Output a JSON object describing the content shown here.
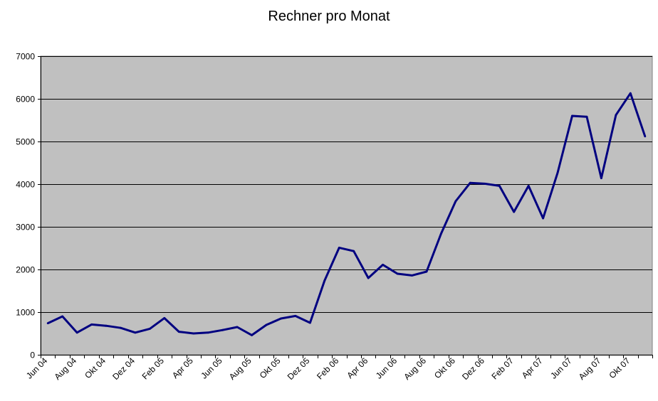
{
  "chart_data": {
    "type": "line",
    "title": "Rechner pro Monat",
    "xlabel": "",
    "ylabel": "",
    "ylim": [
      0,
      7000
    ],
    "yticks": [
      0,
      1000,
      2000,
      3000,
      4000,
      5000,
      6000,
      7000
    ],
    "grid": true,
    "legend": "none",
    "colors": {
      "plot_background": "#c0c0c0",
      "line": "#000080",
      "gridline": "#000000"
    },
    "x": [
      "Jun 04",
      "Jul 04",
      "Aug 04",
      "Sep 04",
      "Okt 04",
      "Nov 04",
      "Dez 04",
      "Jan 05",
      "Feb 05",
      "Mär 05",
      "Apr 05",
      "Mai 05",
      "Jun 05",
      "Jul 05",
      "Aug 05",
      "Sep 05",
      "Okt 05",
      "Nov 05",
      "Dez 05",
      "Jan 06",
      "Feb 06",
      "Mär 06",
      "Apr 06",
      "Mai 06",
      "Jun 06",
      "Jul 06",
      "Aug 06",
      "Sep 06",
      "Okt 06",
      "Nov 06",
      "Dez 06",
      "Jan 07",
      "Feb 07",
      "Mär 07",
      "Apr 07",
      "Mai 07",
      "Jun 07",
      "Jul 07",
      "Aug 07",
      "Sep 07",
      "Okt 07",
      "Nov 07"
    ],
    "xtick_labels": [
      "Jun 04",
      "Aug 04",
      "Okt 04",
      "Dez 04",
      "Feb 05",
      "Apr 05",
      "Jun 05",
      "Aug 05",
      "Okt 05",
      "Dez 05",
      "Feb 06",
      "Apr 06",
      "Jun 06",
      "Aug 06",
      "Okt 06",
      "Dez 06",
      "Feb 07",
      "Apr 07",
      "Jun 07",
      "Aug 07",
      "Okt 07"
    ],
    "series": [
      {
        "values": [
          740,
          900,
          520,
          710,
          680,
          630,
          520,
          610,
          860,
          540,
          500,
          520,
          580,
          650,
          460,
          700,
          850,
          910,
          750,
          1740,
          2510,
          2430,
          1800,
          2110,
          1900,
          1860,
          1950,
          2840,
          3600,
          4030,
          4010,
          3960,
          3350,
          3960,
          3200,
          4270,
          5600,
          5580,
          4140,
          5620,
          6130,
          5120
        ]
      }
    ]
  }
}
